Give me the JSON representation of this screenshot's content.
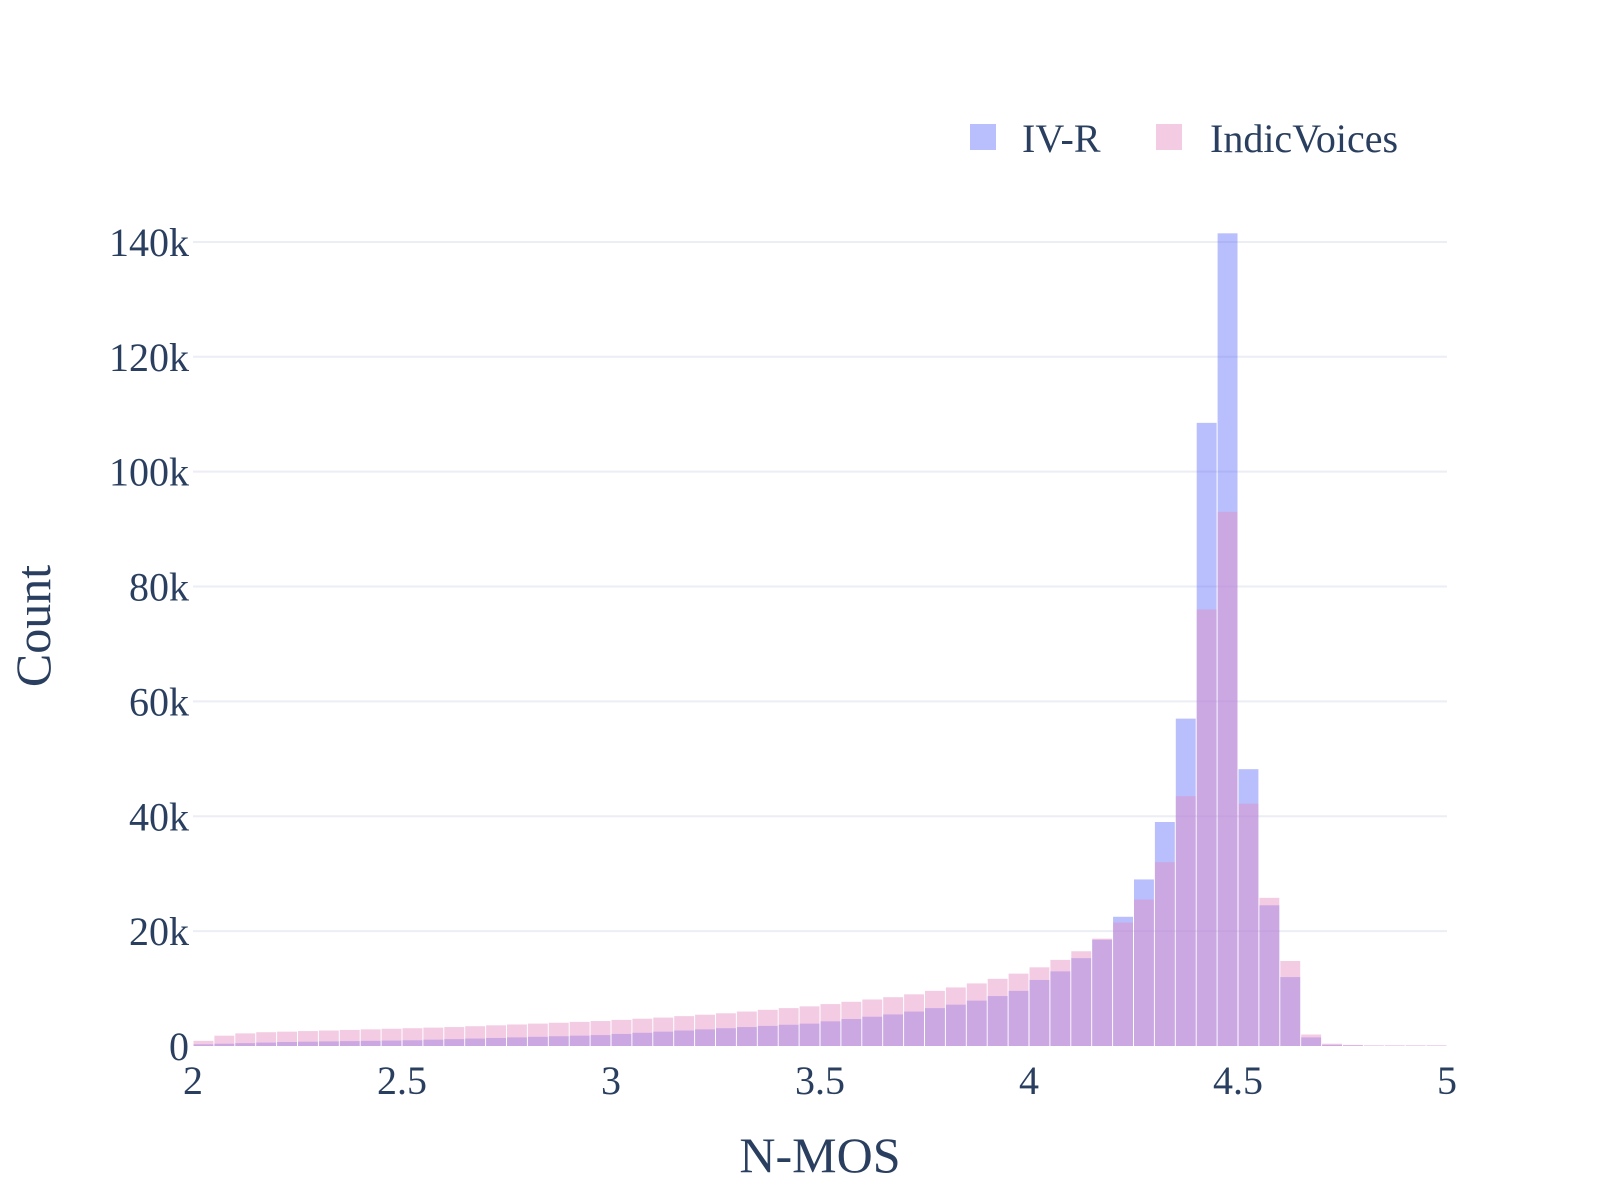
{
  "chart_data": {
    "type": "bar",
    "subtype": "overlaid-histogram",
    "title": "",
    "xlabel": "N-MOS",
    "ylabel": "Count",
    "xlim": [
      2,
      5
    ],
    "ylim": [
      0,
      148000
    ],
    "bin_width": 0.05,
    "x_ticks": [
      2,
      2.5,
      3,
      3.5,
      4,
      4.5,
      5
    ],
    "x_tick_labels": [
      "2",
      "2.5",
      "3",
      "3.5",
      "4",
      "4.5",
      "5"
    ],
    "y_ticks": [
      0,
      20000,
      40000,
      60000,
      80000,
      100000,
      120000,
      140000
    ],
    "y_tick_labels": [
      "0",
      "20k",
      "40k",
      "60k",
      "80k",
      "100k",
      "120k",
      "140k"
    ],
    "grid": "horizontal",
    "legend_position": "top-right",
    "bin_starts": [
      2.0,
      2.05,
      2.1,
      2.15,
      2.2,
      2.25,
      2.3,
      2.35,
      2.4,
      2.45,
      2.5,
      2.55,
      2.6,
      2.65,
      2.7,
      2.75,
      2.8,
      2.85,
      2.9,
      2.95,
      3.0,
      3.05,
      3.1,
      3.15,
      3.2,
      3.25,
      3.3,
      3.35,
      3.4,
      3.45,
      3.5,
      3.55,
      3.6,
      3.65,
      3.7,
      3.75,
      3.8,
      3.85,
      3.9,
      3.95,
      4.0,
      4.05,
      4.1,
      4.15,
      4.2,
      4.25,
      4.3,
      4.35,
      4.4,
      4.45,
      4.5,
      4.55,
      4.6,
      4.65,
      4.7,
      4.75,
      4.8,
      4.85,
      4.9,
      4.95
    ],
    "series": [
      {
        "name": "IV-R",
        "color": "#636efa",
        "opacity": 0.45,
        "values": [
          300,
          400,
          500,
          600,
          700,
          750,
          800,
          850,
          900,
          950,
          1000,
          1100,
          1200,
          1300,
          1400,
          1500,
          1600,
          1700,
          1800,
          1900,
          2100,
          2300,
          2500,
          2700,
          2900,
          3100,
          3300,
          3500,
          3700,
          3900,
          4300,
          4700,
          5100,
          5500,
          6000,
          6600,
          7200,
          7900,
          8700,
          9600,
          11500,
          13000,
          15300,
          18500,
          22500,
          29000,
          39000,
          57000,
          108500,
          141500,
          48200,
          24500,
          12000,
          1500,
          200,
          100,
          50,
          50,
          50,
          50
        ]
      },
      {
        "name": "IndicVoices",
        "color": "#e48fc4",
        "opacity": 0.45,
        "values": [
          900,
          1800,
          2200,
          2400,
          2500,
          2600,
          2700,
          2800,
          2900,
          3000,
          3100,
          3200,
          3300,
          3450,
          3600,
          3750,
          3900,
          4050,
          4200,
          4350,
          4550,
          4750,
          4950,
          5200,
          5450,
          5700,
          6000,
          6300,
          6600,
          6900,
          7300,
          7700,
          8100,
          8500,
          9000,
          9600,
          10200,
          10900,
          11700,
          12600,
          13700,
          15000,
          16500,
          18700,
          21500,
          25500,
          32000,
          43500,
          76000,
          93000,
          42200,
          25800,
          14800,
          2000,
          400,
          200,
          100,
          100,
          100,
          100
        ]
      }
    ]
  }
}
